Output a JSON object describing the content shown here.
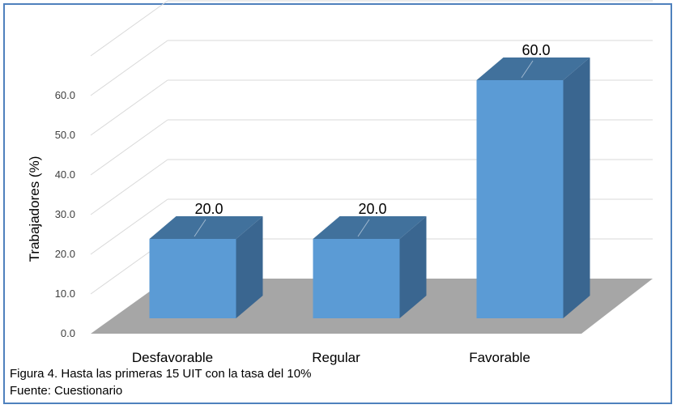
{
  "chart_data": {
    "type": "bar",
    "categories": [
      "Desfavorable",
      "Regular",
      "Favorable"
    ],
    "values": [
      20.0,
      20.0,
      60.0
    ],
    "data_labels": [
      "20.0",
      "20.0",
      "60.0"
    ],
    "ylabel": "Trabajadores (%)",
    "xlabel": "",
    "ylim": [
      0,
      60
    ],
    "yticks": [
      "0.0",
      "10.0",
      "20.0",
      "30.0",
      "40.0",
      "50.0",
      "60.0"
    ],
    "grid": true,
    "style": "3d-column",
    "colors": {
      "bar_front": "#5b9bd5",
      "bar_top": "#41719c",
      "bar_side": "#3a6690",
      "floor": "#a6a6a6",
      "grid": "#d9d9d9"
    }
  },
  "caption": {
    "figure": "Figura 4. Hasta las primeras 15 UIT con la tasa del 10%",
    "source": "Fuente: Cuestionario"
  }
}
